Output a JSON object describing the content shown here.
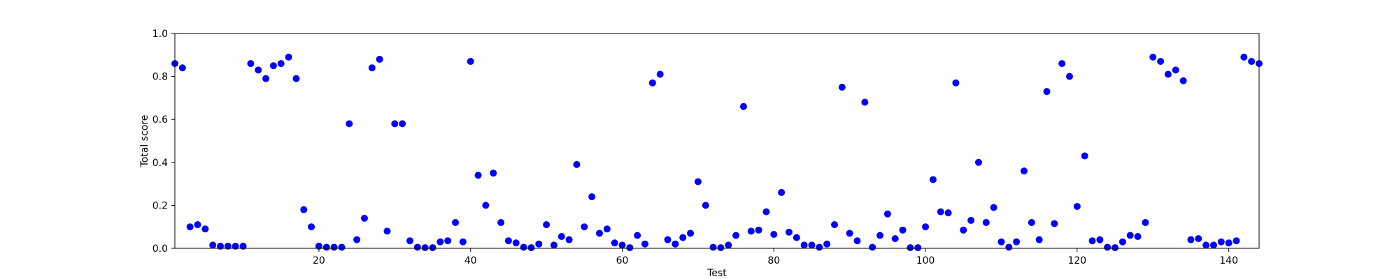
{
  "chart_data": {
    "type": "scatter",
    "xlabel": "Test",
    "ylabel": "Total score",
    "xlim": [
      1,
      144
    ],
    "ylim": [
      0.0,
      1.0
    ],
    "xticks": [
      20,
      40,
      60,
      80,
      100,
      120,
      140
    ],
    "xtick_labels": [
      "20",
      "40",
      "60",
      "80",
      "100",
      "120",
      "140"
    ],
    "yticks": [
      0.0,
      0.2,
      0.4,
      0.6,
      0.8,
      1.0
    ],
    "ytick_labels": [
      "0.0",
      "0.2",
      "0.4",
      "0.6",
      "0.8",
      "1.0"
    ],
    "grid": false,
    "marker_color": "#0000ff",
    "series": [
      {
        "x": [
          1,
          2,
          3,
          4,
          5,
          6,
          7,
          8,
          9,
          10,
          11,
          12,
          13,
          14,
          15,
          16,
          17,
          18,
          19,
          20,
          21,
          22,
          23,
          24,
          25,
          26,
          27,
          28,
          29,
          30,
          31,
          32,
          33,
          34,
          35,
          36,
          37,
          38,
          39,
          40,
          41,
          42,
          43,
          44,
          45,
          46,
          47,
          48,
          49,
          50,
          51,
          52,
          53,
          54,
          55,
          56,
          57,
          58,
          59,
          60,
          61,
          62,
          63,
          64,
          65,
          66,
          67,
          68,
          69,
          70,
          71,
          72,
          73,
          74,
          75,
          76,
          77,
          78,
          79,
          80,
          81,
          82,
          83,
          84,
          85,
          86,
          87,
          88,
          89,
          90,
          91,
          92,
          93,
          94,
          95,
          96,
          97,
          98,
          99,
          100,
          101,
          102,
          103,
          104,
          105,
          106,
          107,
          108,
          109,
          110,
          111,
          112,
          113,
          114,
          115,
          116,
          117,
          118,
          119,
          120,
          121,
          122,
          123,
          124,
          125,
          126,
          127,
          128,
          129,
          130,
          131,
          132,
          133,
          134,
          135,
          136,
          137,
          138,
          139,
          140,
          141,
          142,
          143,
          144
        ],
        "y": [
          0.86,
          0.84,
          0.1,
          0.11,
          0.09,
          0.015,
          0.01,
          0.01,
          0.01,
          0.01,
          0.86,
          0.83,
          0.79,
          0.85,
          0.86,
          0.89,
          0.79,
          0.18,
          0.1,
          0.01,
          0.005,
          0.005,
          0.005,
          0.58,
          0.04,
          0.14,
          0.84,
          0.88,
          0.08,
          0.58,
          0.58,
          0.035,
          0.005,
          0.003,
          0.003,
          0.03,
          0.035,
          0.12,
          0.03,
          0.87,
          0.34,
          0.2,
          0.35,
          0.12,
          0.035,
          0.025,
          0.005,
          0.003,
          0.02,
          0.11,
          0.015,
          0.055,
          0.04,
          0.39,
          0.1,
          0.24,
          0.07,
          0.09,
          0.025,
          0.015,
          0.003,
          0.06,
          0.02,
          0.77,
          0.81,
          0.04,
          0.02,
          0.05,
          0.07,
          0.31,
          0.2,
          0.005,
          0.003,
          0.015,
          0.06,
          0.66,
          0.08,
          0.085,
          0.17,
          0.065,
          0.26,
          0.075,
          0.05,
          0.015,
          0.015,
          0.005,
          0.02,
          0.11,
          0.75,
          0.07,
          0.035,
          0.68,
          0.005,
          0.06,
          0.16,
          0.045,
          0.085,
          0.003,
          0.003,
          0.1,
          0.32,
          0.17,
          0.165,
          0.77,
          0.085,
          0.13,
          0.4,
          0.12,
          0.19,
          0.03,
          0.005,
          0.03,
          0.36,
          0.12,
          0.04,
          0.73,
          0.115,
          0.86,
          0.8,
          0.195,
          0.43,
          0.035,
          0.04,
          0.005,
          0.003,
          0.03,
          0.06,
          0.055,
          0.12,
          0.89,
          0.87,
          0.81,
          0.83,
          0.78,
          0.04,
          0.045,
          0.015,
          0.015,
          0.03,
          0.025,
          0.035,
          0.89,
          0.87,
          0.86
        ]
      }
    ]
  }
}
